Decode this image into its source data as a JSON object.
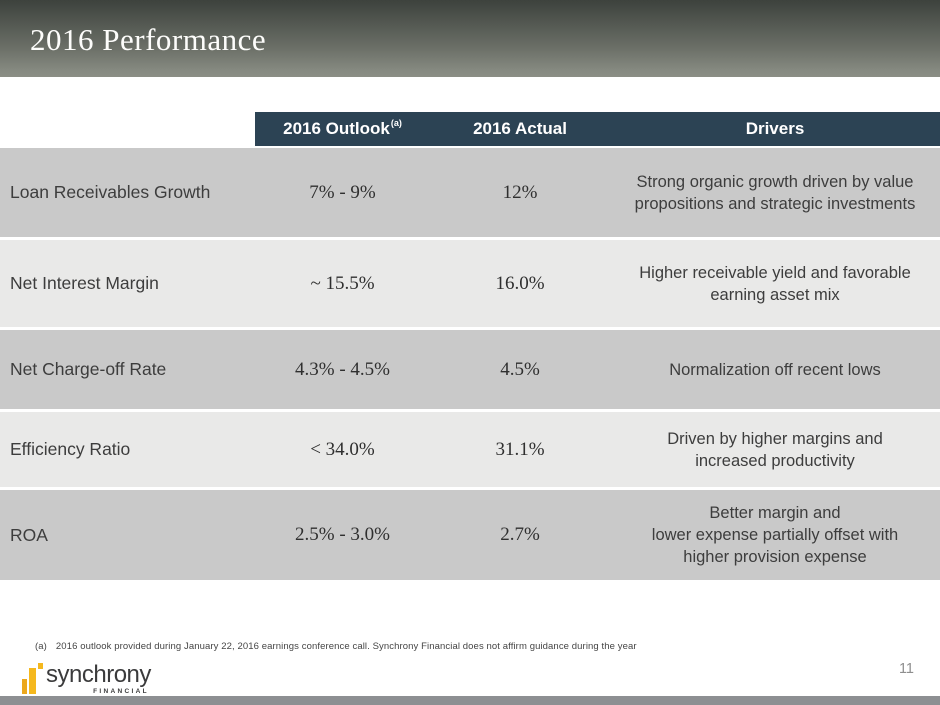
{
  "slide": {
    "title": "2016 Performance",
    "page_number": "11",
    "footnote_marker": "(a)",
    "footnote": "2016 outlook provided during January 22, 2016 earnings conference call. Synchrony Financial does not affirm guidance during the year"
  },
  "table": {
    "headers": {
      "outlook": "2016 Outlook",
      "outlook_sup": "(a)",
      "actual": "2016 Actual",
      "drivers": "Drivers"
    },
    "rows": [
      {
        "metric": "Loan Receivables Growth",
        "outlook": "7% - 9%",
        "actual": "12%",
        "drivers": "Strong organic growth driven by value\npropositions and strategic investments"
      },
      {
        "metric": "Net Interest Margin",
        "outlook": "~ 15.5%",
        "actual": "16.0%",
        "drivers": "Higher receivable yield and favorable\nearning asset mix"
      },
      {
        "metric": "Net Charge-off Rate",
        "outlook": "4.3% - 4.5%",
        "actual": "4.5%",
        "drivers": "Normalization off recent lows"
      },
      {
        "metric": "Efficiency Ratio",
        "outlook": "< 34.0%",
        "actual": "31.1%",
        "drivers": "Driven by higher margins and\nincreased productivity"
      },
      {
        "metric": "ROA",
        "outlook": "2.5% - 3.0%",
        "actual": "2.7%",
        "drivers": "Better margin and\nlower expense partially offset with\nhigher provision expense"
      }
    ]
  },
  "logo": {
    "name": "synchrony",
    "sub": "FINANCIAL"
  },
  "colors": {
    "header_bar": "#2c4354",
    "row_dark": "#c9c9c9",
    "row_light": "#e9e9e8",
    "banner_top": "#3d423d",
    "banner_bottom": "#8b8e85",
    "brand_gold": "#f5b81e",
    "bottom_strip": "#8d8f92"
  }
}
